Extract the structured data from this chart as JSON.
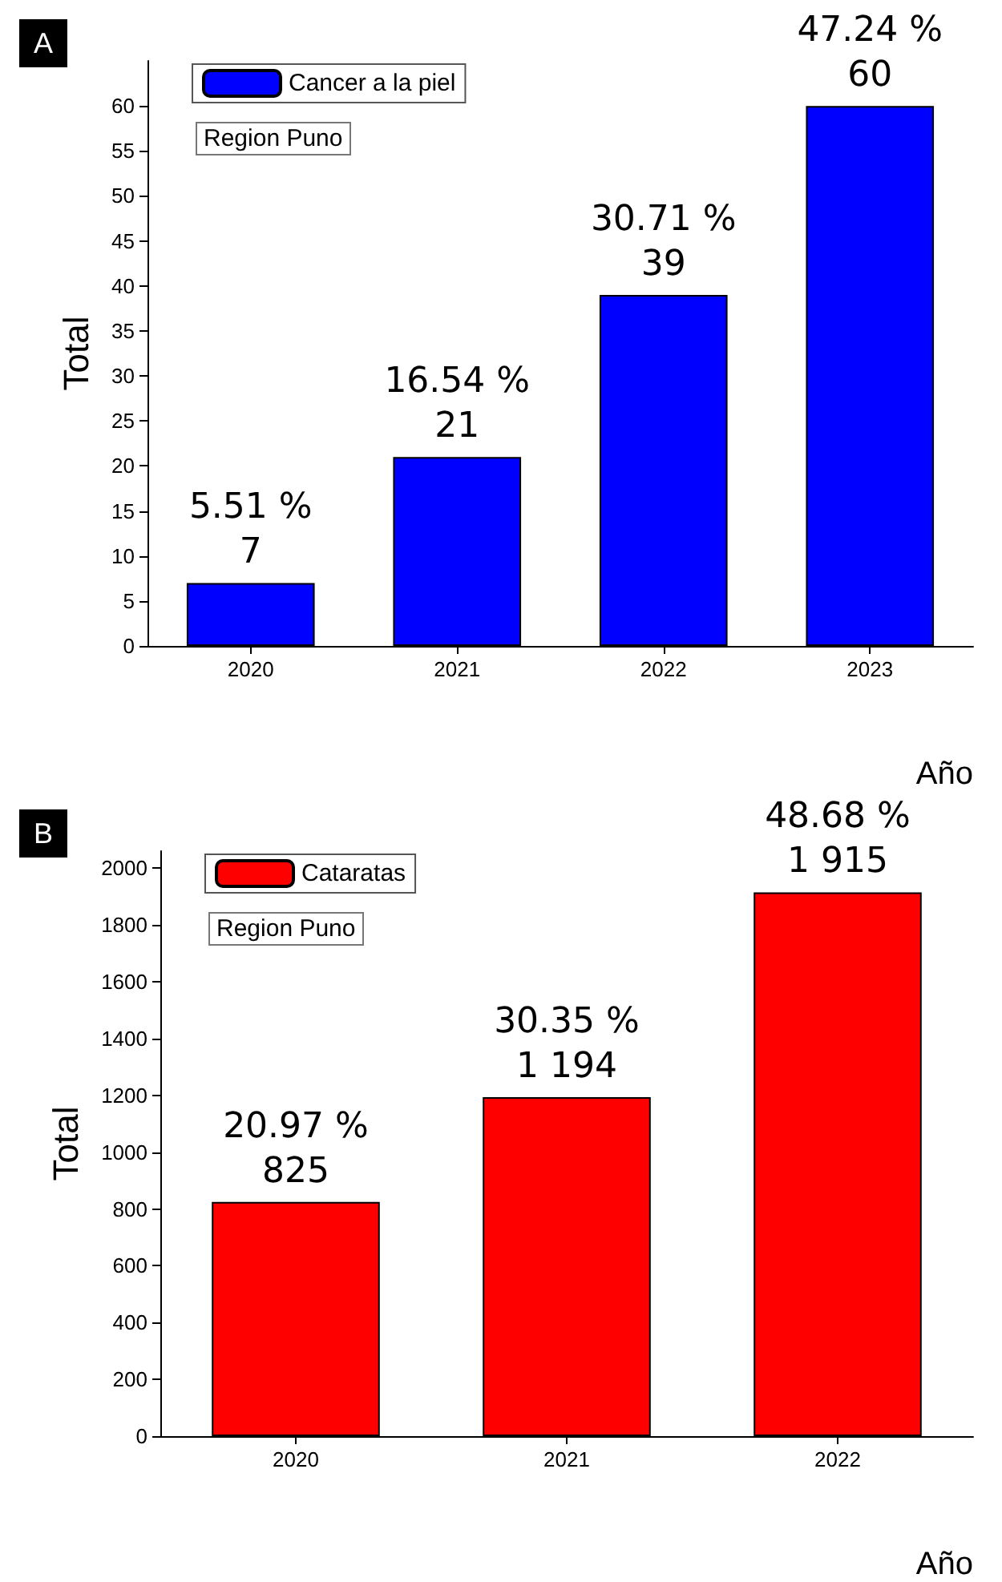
{
  "chart_data": [
    {
      "type": "bar",
      "title": "A",
      "xlabel": "Año",
      "ylabel": "Total",
      "categories": [
        "2020",
        "2021",
        "2022",
        "2023"
      ],
      "series": [
        {
          "name": "Cancer a la piel",
          "color": "#0000ff",
          "values": [
            7,
            21,
            39,
            60
          ],
          "value_labels": [
            "5.51 %\n7",
            "16.54 %\n21",
            "30.71 %\n39",
            "47.24 %\n60"
          ]
        }
      ],
      "ylim": [
        0,
        65
      ],
      "yticks": [
        0,
        5,
        10,
        15,
        20,
        25,
        30,
        35,
        40,
        45,
        50,
        55,
        60
      ],
      "grid": false,
      "legend": "top left",
      "annotations": [
        "Region Puno"
      ]
    },
    {
      "type": "bar",
      "title": "B",
      "xlabel": "Año",
      "ylabel": "Total",
      "categories": [
        "2020",
        "2021",
        "2022"
      ],
      "series": [
        {
          "name": "Cataratas",
          "color": "#ff0000",
          "values": [
            825,
            1194,
            1915
          ],
          "value_labels": [
            "20.97 %\n825",
            "30.35 %\n1 194",
            "48.68 %\n1 915"
          ]
        }
      ],
      "ylim": [
        0,
        2060
      ],
      "yticks": [
        0,
        200,
        400,
        600,
        800,
        1000,
        1200,
        1400,
        1600,
        1800,
        2000
      ],
      "grid": false,
      "legend": "top left",
      "annotations": [
        "Region Puno"
      ]
    }
  ]
}
